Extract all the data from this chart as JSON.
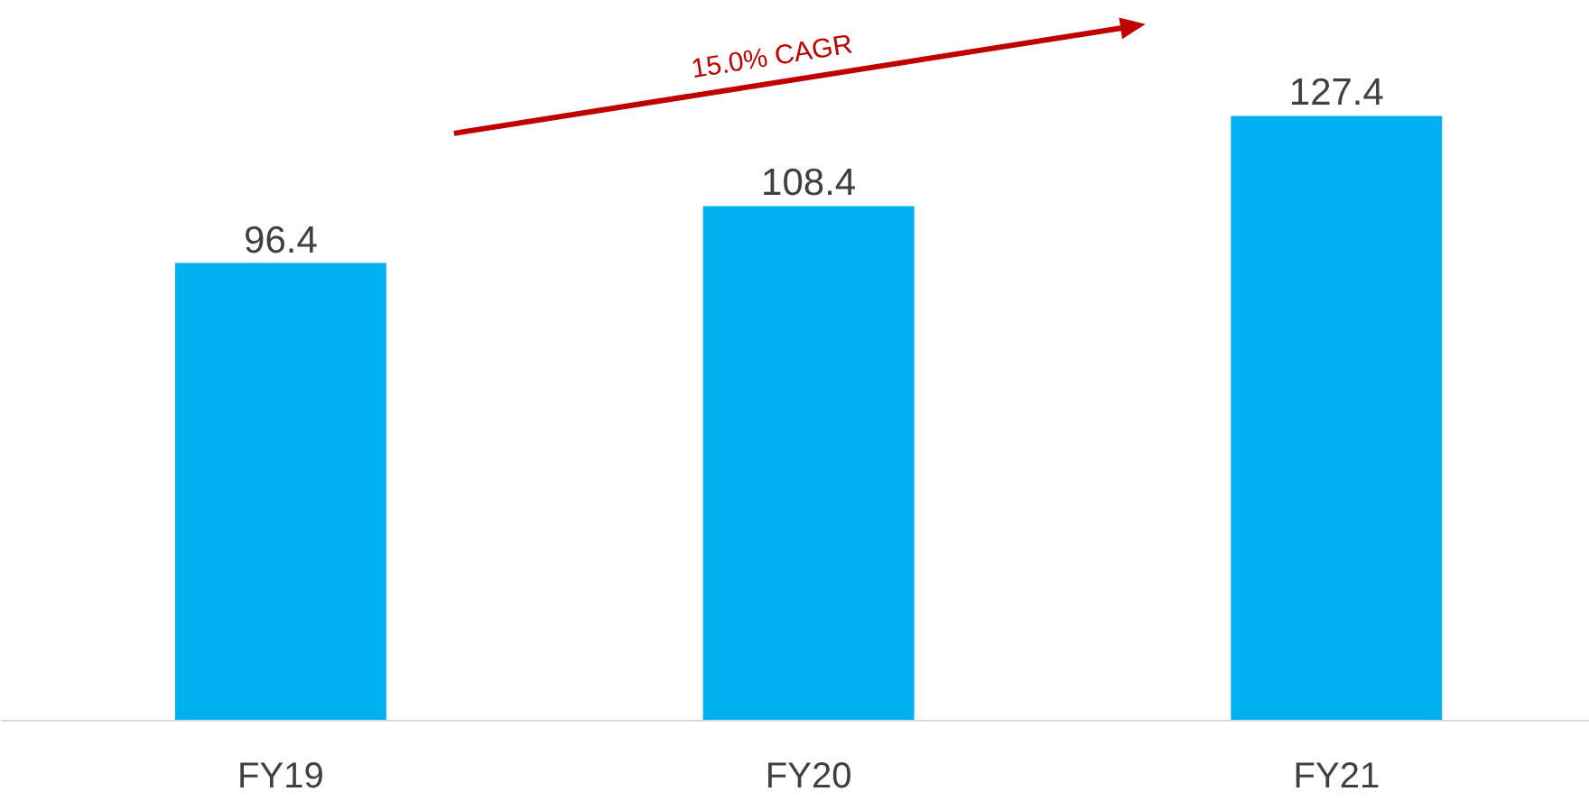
{
  "chart_data": {
    "type": "bar",
    "categories": [
      "FY19",
      "FY20",
      "FY21"
    ],
    "values": [
      96.4,
      108.4,
      127.4
    ],
    "color": "#00b0f0",
    "data_labels": true,
    "grid": false,
    "annotations": [
      "15.0% CAGR"
    ]
  }
}
